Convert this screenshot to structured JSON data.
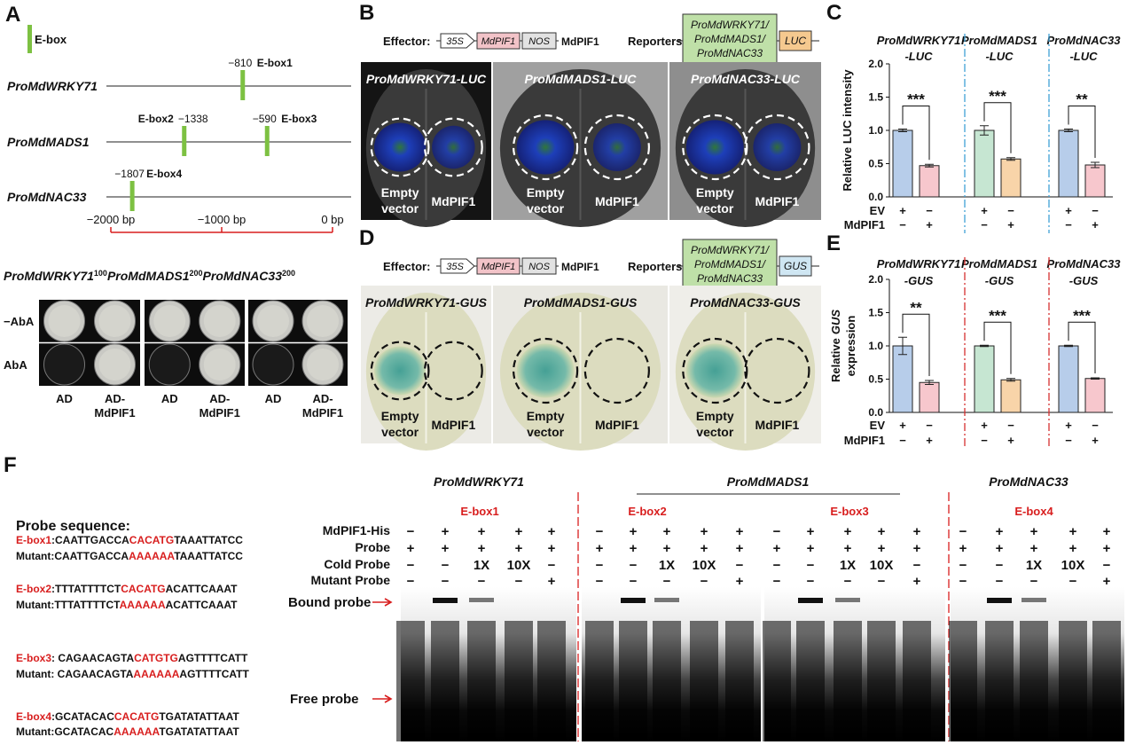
{
  "panels": {
    "A": {
      "label": "A",
      "legend": "E-box",
      "promoters": [
        {
          "name": "ProMdWRKY71",
          "sites": [
            {
              "pos": {
                "value": -810,
                "label": "−810"
              },
              "name": "E-box1"
            }
          ]
        },
        {
          "name": "ProMdMADS1",
          "sites": [
            {
              "pos": {
                "value": -1338,
                "label": "−1338"
              },
              "name": "E-box2"
            },
            {
              "pos": {
                "value": -590,
                "label": "−590"
              },
              "name": "E-box3"
            }
          ]
        },
        {
          "name": "ProMdNAC33",
          "sites": [
            {
              "pos": {
                "value": -1807,
                "label": "−1807"
              },
              "name": "E-box4"
            }
          ]
        }
      ],
      "scale": [
        {
          "value": -2000,
          "label": "−2000 bp"
        },
        {
          "value": -1000,
          "label": "−1000 bp"
        },
        {
          "value": 0,
          "label": "0 bp"
        }
      ],
      "y1h": {
        "strains": [
          {
            "name": "ProMdWRKY71",
            "sup": 100
          },
          {
            "name": "ProMdMADS1",
            "sup": 200
          },
          {
            "name": "ProMdNAC33",
            "sup": 200
          }
        ],
        "rows": [
          "−AbA",
          "AbA"
        ],
        "columns": [
          [
            "AD"
          ],
          [
            "AD-",
            "MdPIF1"
          ]
        ]
      }
    },
    "B": {
      "label": "B",
      "effector": "Effector:",
      "promoter": "35S",
      "gene": "MdPIF1",
      "terminator": "NOS",
      "construct": "MdPIF1",
      "reporters": "Reporters:",
      "reporter_promoter": [
        "ProMdWRKY71/",
        "ProMdMADS1/",
        "ProMdNAC33"
      ],
      "reporter": "LUC",
      "leaves": [
        "ProMdWRKY71-LUC",
        "ProMdMADS1-LUC",
        "ProMdNAC33-LUC"
      ],
      "left": [
        "Empty",
        "vector"
      ],
      "right": "MdPIF1"
    },
    "D": {
      "label": "D",
      "effector": "Effector:",
      "promoter": "35S",
      "gene": "MdPIF1",
      "terminator": "NOS",
      "construct": "MdPIF1",
      "reporters": "Reporters:",
      "reporter_promoter": [
        "ProMdWRKY71/",
        "ProMdMADS1/",
        "ProMdNAC33"
      ],
      "reporter": "GUS",
      "leaves": [
        "ProMdWRKY71-GUS",
        "ProMdMADS1-GUS",
        "ProMdNAC33-GUS"
      ],
      "left": [
        "Empty",
        "vector"
      ],
      "right": "MdPIF1"
    },
    "F": {
      "label": "F",
      "probe_title": "Probe sequence:",
      "probes": [
        {
          "wt": [
            "E-box1",
            ":CAATTGACCA",
            "CACATG",
            "TAAATTATCC"
          ],
          "mut": [
            "Mutant:CAATTGACCA",
            "AAAAAA",
            "TAAATTATCC"
          ]
        },
        {
          "wt": [
            "E-box2",
            ":TTTATTTTCT",
            "CACATG",
            "ACATTCAAAT"
          ],
          "mut": [
            "Mutant:TTTATTTTCT",
            "AAAAAA",
            "ACATTCAAAT"
          ]
        },
        {
          "wt": [
            "E-box3",
            ": CAGAACAGTA",
            "CATGTG",
            "AGTTTTCATT"
          ],
          "mut": [
            "Mutant: CAGAACAGTA",
            "AAAAAA",
            "AGTTTTCATT"
          ]
        },
        {
          "wt": [
            "E-box4",
            ":GCATACAC",
            "CACATG",
            "TGATATATTAAT"
          ],
          "mut": [
            "Mutant:GCATACAC",
            "AAAAAA",
            "TGATATATTAAT"
          ]
        }
      ],
      "promoters": [
        "ProMdWRKY71",
        "ProMdMADS1",
        "ProMdNAC33"
      ],
      "boxes": [
        "E-box1",
        "E-box2",
        "E-box3",
        "E-box4"
      ],
      "row_labels": [
        "MdPIF1-His",
        "Probe",
        "Cold Probe",
        "Mutant Probe"
      ],
      "lanes": [
        [
          "−",
          "+",
          "+",
          "+",
          "+"
        ],
        [
          "+",
          "+",
          "+",
          "+",
          "+"
        ],
        [
          "−",
          "−",
          "1X",
          "10X",
          "−"
        ],
        [
          "−",
          "−",
          "−",
          "−",
          "+"
        ]
      ],
      "bound": "Bound probe",
      "free": "Free probe"
    }
  },
  "chart_data": [
    {
      "type": "bar",
      "panel_label": "C",
      "groups": [
        [
          "ProMdWRKY71",
          "-LUC"
        ],
        [
          "ProMdMADS1",
          "-LUC"
        ],
        [
          "ProMdNAC33",
          "-LUC"
        ]
      ],
      "ylabel": [
        "Relative LUC intensity"
      ],
      "ylim": [
        0,
        2
      ],
      "yticks": [
        {
          "value": 0,
          "label": "0.0"
        },
        0.5,
        {
          "value": 1,
          "label": "1.0"
        },
        1.5,
        {
          "value": 2,
          "label": "2.0"
        }
      ],
      "values": [
        1.0,
        0.47,
        1.0,
        0.57,
        1.0,
        0.48
      ],
      "errors": [
        0.02,
        0.02,
        0.07,
        0.02,
        0.02,
        0.04
      ],
      "colors": [
        "#b7cdea",
        "#f7c7cd",
        "#c6e6d2",
        "#f8d4a9",
        "#b7cdea",
        "#f7c7cd"
      ],
      "significance": [
        "***",
        "***",
        "**"
      ],
      "rows": [
        {
          "name": "EV",
          "signs": [
            "+",
            "−",
            "+",
            "−",
            "+",
            "−"
          ]
        },
        {
          "name": "MdPIF1",
          "signs": [
            "−",
            "+",
            "−",
            "+",
            "−",
            "+"
          ]
        }
      ],
      "divider_color": "#3fa0d6"
    },
    {
      "type": "bar",
      "panel_label": "E",
      "groups": [
        [
          "ProMdWRKY71",
          "-GUS"
        ],
        [
          "ProMdMADS1",
          "-GUS"
        ],
        [
          "ProMdNAC33",
          "-GUS"
        ]
      ],
      "ylabel": [
        "Relative",
        "GUS",
        "expression"
      ],
      "ylim": [
        0,
        2
      ],
      "yticks": [
        {
          "value": 0,
          "label": "0.0"
        },
        0.5,
        {
          "value": 1,
          "label": "1.0"
        },
        1.5,
        {
          "value": 2,
          "label": "2.0"
        }
      ],
      "values": [
        1.0,
        0.45,
        1.0,
        0.49,
        1.0,
        0.51
      ],
      "errors": [
        0.13,
        0.03,
        0.01,
        0.02,
        0.01,
        0.01
      ],
      "colors": [
        "#b7cdea",
        "#f7c7cd",
        "#c6e6d2",
        "#f8d4a9",
        "#b7cdea",
        "#f7c7cd"
      ],
      "significance": [
        "**",
        "***",
        "***"
      ],
      "rows": [
        {
          "name": "EV",
          "signs": [
            "+",
            "−",
            "+",
            "−",
            "+",
            "−"
          ]
        },
        {
          "name": "MdPIF1",
          "signs": [
            "−",
            "+",
            "−",
            "+",
            "−",
            "+"
          ]
        }
      ],
      "divider_color": "#d63030"
    }
  ]
}
